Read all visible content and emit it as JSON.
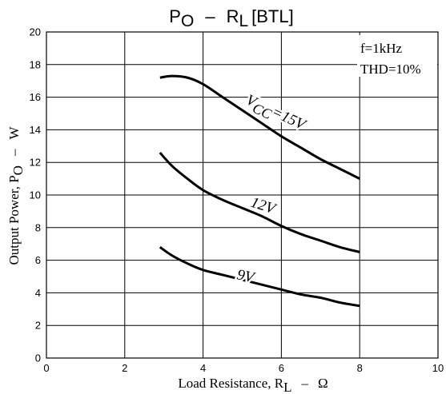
{
  "chart_data": {
    "type": "line",
    "title": {
      "main": "P",
      "main_sub": "O",
      "dash": "–",
      "r": "R",
      "r_sub": "L",
      "suffix": "[BTL]"
    },
    "xlabel": {
      "text": "Load Resistance, R",
      "sub": "L",
      "dash": "–",
      "unit": "Ω"
    },
    "ylabel": {
      "text": "Output Power, P",
      "sub": "O",
      "dash": "–",
      "unit": "W"
    },
    "xlim": [
      0,
      10
    ],
    "ylim": [
      0,
      20
    ],
    "x_ticks": [
      0,
      2,
      4,
      6,
      8,
      10
    ],
    "y_ticks": [
      0,
      2,
      4,
      6,
      8,
      10,
      12,
      14,
      16,
      18,
      20
    ],
    "grid": true,
    "conditions": [
      "f=1kHz",
      "THD=10%"
    ],
    "series": [
      {
        "name": "VCC=15V",
        "label_main": "V",
        "label_sub": "CC",
        "label_rest": "=15V",
        "x": [
          2.9,
          3.2,
          3.6,
          4.0,
          4.5,
          5.0,
          5.5,
          6.0,
          6.5,
          7.0,
          7.5,
          8.0
        ],
        "y": [
          17.2,
          17.3,
          17.2,
          16.8,
          16.0,
          15.2,
          14.4,
          13.6,
          12.9,
          12.2,
          11.6,
          11.0
        ]
      },
      {
        "name": "12V",
        "label_main": "12V",
        "x": [
          2.9,
          3.2,
          3.6,
          4.0,
          4.5,
          5.0,
          5.5,
          6.0,
          6.5,
          7.0,
          7.5,
          8.0
        ],
        "y": [
          12.6,
          11.8,
          11.0,
          10.3,
          9.7,
          9.2,
          8.7,
          8.1,
          7.6,
          7.2,
          6.8,
          6.5
        ]
      },
      {
        "name": "9V",
        "label_main": "9V",
        "x": [
          2.9,
          3.2,
          3.6,
          4.0,
          4.5,
          5.0,
          5.5,
          6.0,
          6.5,
          7.0,
          7.5,
          8.0
        ],
        "y": [
          6.8,
          6.3,
          5.8,
          5.4,
          5.1,
          4.8,
          4.5,
          4.2,
          3.9,
          3.7,
          3.4,
          3.2
        ]
      }
    ]
  }
}
